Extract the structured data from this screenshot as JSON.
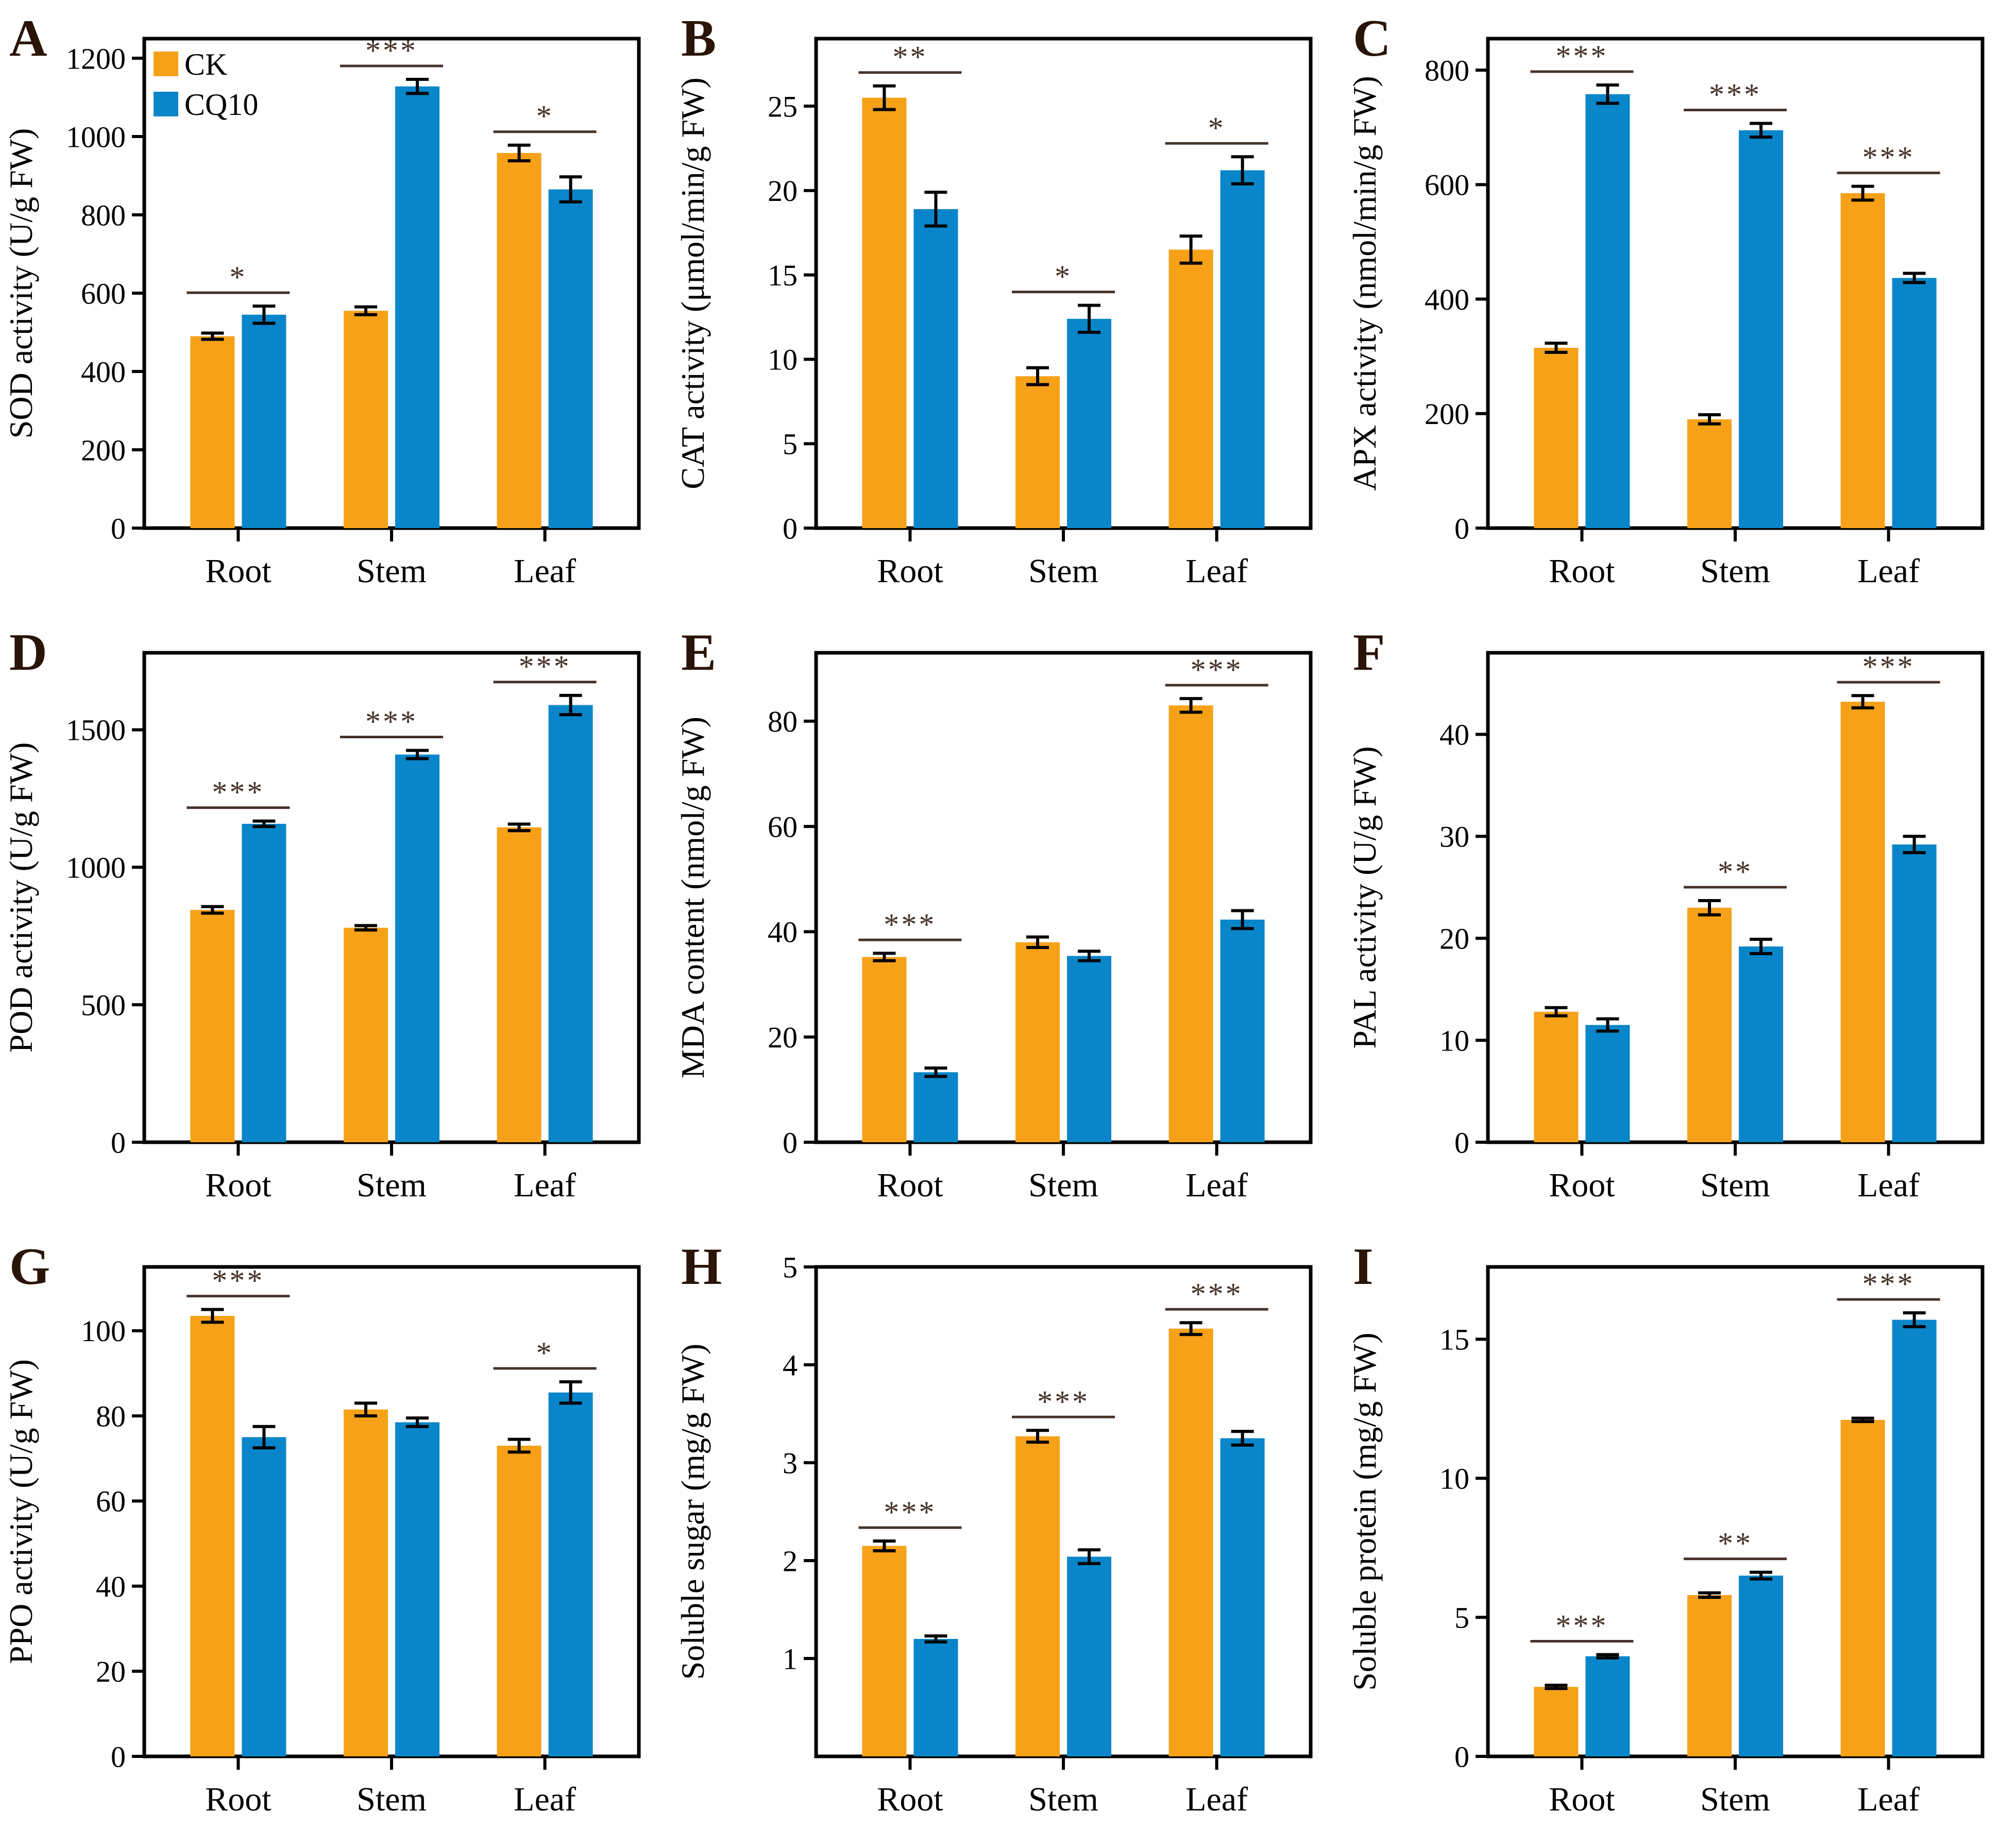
{
  "figure": {
    "legend": {
      "ck": "CK",
      "cq10": "CQ10"
    },
    "colors": {
      "ck": "#F7A119",
      "cq10": "#0986C9",
      "axis": "#000000",
      "sig_line": "#45332B",
      "panel_letter": "#2A1407"
    }
  },
  "chart_data": [
    {
      "type": "bar",
      "panel": "A",
      "ylabel": "SOD activity (U/g FW)",
      "categories": [
        "Root",
        "Stem",
        "Leaf"
      ],
      "series": [
        {
          "name": "CK",
          "values": [
            490,
            555,
            958
          ],
          "errors": [
            8,
            10,
            20
          ]
        },
        {
          "name": "CQ10",
          "values": [
            545,
            1128,
            865
          ],
          "errors": [
            22,
            18,
            32
          ]
        }
      ],
      "significance": [
        "*",
        "***",
        "*"
      ],
      "yticks": [
        0,
        200,
        400,
        600,
        800,
        1000,
        1200
      ],
      "ylim": [
        0,
        1250
      ],
      "legend": true
    },
    {
      "type": "bar",
      "panel": "B",
      "ylabel": "CAT activity (μmol/min/g FW)",
      "categories": [
        "Root",
        "Stem",
        "Leaf"
      ],
      "series": [
        {
          "name": "CK",
          "values": [
            25.5,
            9.0,
            16.5
          ],
          "errors": [
            0.7,
            0.5,
            0.8
          ]
        },
        {
          "name": "CQ10",
          "values": [
            18.9,
            12.4,
            21.2
          ],
          "errors": [
            1.0,
            0.8,
            0.8
          ]
        }
      ],
      "significance": [
        "**",
        "*",
        "*"
      ],
      "yticks": [
        0,
        5,
        10,
        15,
        20,
        25
      ],
      "ylim": [
        0,
        29
      ],
      "legend": false
    },
    {
      "type": "bar",
      "panel": "C",
      "ylabel": "APX activity (nmol/min/g FW)",
      "categories": [
        "Root",
        "Stem",
        "Leaf"
      ],
      "series": [
        {
          "name": "CK",
          "values": [
            315,
            190,
            585
          ],
          "errors": [
            8,
            8,
            12
          ]
        },
        {
          "name": "CQ10",
          "values": [
            758,
            695,
            437
          ],
          "errors": [
            16,
            12,
            8
          ]
        }
      ],
      "significance": [
        "***",
        "***",
        "***"
      ],
      "yticks": [
        0,
        200,
        400,
        600,
        800
      ],
      "ylim": [
        0,
        855
      ],
      "legend": false
    },
    {
      "type": "bar",
      "panel": "D",
      "ylabel": "POD activity (U/g FW)",
      "categories": [
        "Root",
        "Stem",
        "Leaf"
      ],
      "series": [
        {
          "name": "CK",
          "values": [
            845,
            780,
            1145
          ],
          "errors": [
            12,
            8,
            12
          ]
        },
        {
          "name": "CQ10",
          "values": [
            1158,
            1410,
            1590
          ],
          "errors": [
            10,
            15,
            35
          ]
        }
      ],
      "significance": [
        "***",
        "***",
        "***"
      ],
      "yticks": [
        0,
        500,
        1000,
        1500
      ],
      "ylim": [
        0,
        1780
      ],
      "legend": false
    },
    {
      "type": "bar",
      "panel": "E",
      "ylabel": "MDA content (nmol/g FW)",
      "categories": [
        "Root",
        "Stem",
        "Leaf"
      ],
      "series": [
        {
          "name": "CK",
          "values": [
            35.2,
            38.0,
            83.0
          ],
          "errors": [
            0.7,
            1.0,
            1.3
          ]
        },
        {
          "name": "CQ10",
          "values": [
            13.3,
            35.4,
            42.3
          ],
          "errors": [
            0.8,
            0.9,
            1.7
          ]
        }
      ],
      "significance": [
        "***",
        "",
        "***"
      ],
      "yticks": [
        0,
        20,
        40,
        60,
        80
      ],
      "ylim": [
        0,
        93
      ],
      "legend": false
    },
    {
      "type": "bar",
      "panel": "F",
      "ylabel": "PAL activity (U/g FW)",
      "categories": [
        "Root",
        "Stem",
        "Leaf"
      ],
      "series": [
        {
          "name": "CK",
          "values": [
            12.8,
            23.0,
            43.2
          ],
          "errors": [
            0.4,
            0.7,
            0.6
          ]
        },
        {
          "name": "CQ10",
          "values": [
            11.5,
            19.2,
            29.2
          ],
          "errors": [
            0.6,
            0.7,
            0.8
          ]
        }
      ],
      "significance": [
        "",
        "**",
        "***"
      ],
      "yticks": [
        0,
        10,
        20,
        30,
        40
      ],
      "ylim": [
        0,
        48
      ],
      "legend": false
    },
    {
      "type": "bar",
      "panel": "G",
      "ylabel": "PPO activity (U/g FW)",
      "categories": [
        "Root",
        "Stem",
        "Leaf"
      ],
      "series": [
        {
          "name": "CK",
          "values": [
            103.5,
            81.5,
            73.0
          ],
          "errors": [
            1.5,
            1.5,
            1.5
          ]
        },
        {
          "name": "CQ10",
          "values": [
            75.0,
            78.5,
            85.5
          ],
          "errors": [
            2.5,
            1.0,
            2.5
          ]
        }
      ],
      "significance": [
        "***",
        "",
        "*"
      ],
      "yticks": [
        0,
        20,
        40,
        60,
        80,
        100
      ],
      "ylim": [
        0,
        115
      ],
      "legend": false
    },
    {
      "type": "bar",
      "panel": "H",
      "ylabel": "Soluble sugar (mg/g FW)",
      "categories": [
        "Root",
        "Stem",
        "Leaf"
      ],
      "series": [
        {
          "name": "CK",
          "values": [
            2.15,
            3.27,
            4.37
          ],
          "errors": [
            0.05,
            0.06,
            0.06
          ]
        },
        {
          "name": "CQ10",
          "values": [
            1.2,
            2.04,
            3.25
          ],
          "errors": [
            0.03,
            0.07,
            0.07
          ]
        }
      ],
      "significance": [
        "***",
        "***",
        "***"
      ],
      "yticks": [
        1,
        2,
        3,
        4,
        5
      ],
      "ylim": [
        0,
        5
      ],
      "legend": false
    },
    {
      "type": "bar",
      "panel": "I",
      "ylabel": "Soluble protein (mg/g FW)",
      "categories": [
        "Root",
        "Stem",
        "Leaf"
      ],
      "series": [
        {
          "name": "CK",
          "values": [
            2.5,
            5.8,
            12.1
          ],
          "errors": [
            0.06,
            0.08,
            0.06
          ]
        },
        {
          "name": "CQ10",
          "values": [
            3.6,
            6.5,
            15.7
          ],
          "errors": [
            0.06,
            0.12,
            0.25
          ]
        }
      ],
      "significance": [
        "***",
        "**",
        "***"
      ],
      "yticks": [
        0,
        5,
        10,
        15
      ],
      "ylim": [
        0,
        17.6
      ],
      "legend": false
    }
  ]
}
